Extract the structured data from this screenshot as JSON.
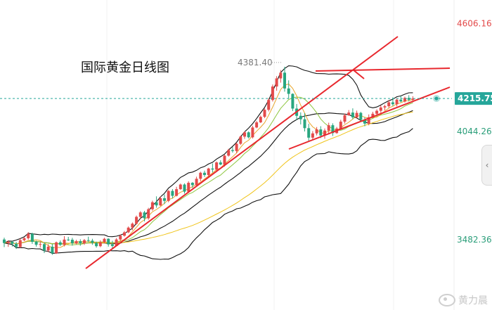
{
  "chart_data": {
    "type": "candlestick",
    "title": "国际黄金日线图",
    "price_axis_labels": [
      "4606.16",
      "4044.26",
      "3482.36"
    ],
    "ylim": [
      3350,
      4640
    ],
    "current_price": {
      "label": "4215.75",
      "value": 4215.75
    },
    "high_annotation": {
      "label": "4381.40",
      "value": 4381.4
    },
    "candles": [
      [
        3483.0,
        3492.4,
        3443.5,
        3464.6
      ],
      [
        3464.6,
        3478.8,
        3444.6,
        3471.4
      ],
      [
        3471.4,
        3474.6,
        3446.4,
        3460.9
      ],
      [
        3460.9,
        3471.2,
        3433.6,
        3444.3
      ],
      [
        3444.3,
        3487.9,
        3438.7,
        3479.5
      ],
      [
        3479.5,
        3495.8,
        3474.5,
        3489.5
      ],
      [
        3489.5,
        3521.4,
        3482.2,
        3512.4
      ],
      [
        3512.4,
        3518.7,
        3460.3,
        3471.0
      ],
      [
        3471.0,
        3476.9,
        3446.0,
        3455.7
      ],
      [
        3455.7,
        3474.0,
        3441.0,
        3459.0
      ],
      [
        3459.0,
        3468.5,
        3412.6,
        3426.0
      ],
      [
        3426.0,
        3458.8,
        3417.0,
        3445.7
      ],
      [
        3445.7,
        3459.3,
        3403.4,
        3411.6
      ],
      [
        3411.6,
        3472.5,
        3407.7,
        3468.4
      ],
      [
        3468.4,
        3477.9,
        3449.3,
        3455.3
      ],
      [
        3455.3,
        3500.2,
        3447.3,
        3482.6
      ],
      [
        3482.6,
        3496.5,
        3474.9,
        3481.8
      ],
      [
        3481.8,
        3491.8,
        3451.1,
        3463.1
      ],
      [
        3463.1,
        3481.5,
        3457.4,
        3474.2
      ],
      [
        3474.2,
        3484.2,
        3450.6,
        3462.9
      ],
      [
        3462.9,
        3485.7,
        3455.1,
        3479.4
      ],
      [
        3479.4,
        3497.6,
        3469.4,
        3476.9
      ],
      [
        3476.9,
        3486.7,
        3455.3,
        3465.2
      ],
      [
        3465.2,
        3472.0,
        3440.8,
        3448.3
      ],
      [
        3448.3,
        3478.6,
        3442.9,
        3468.7
      ],
      [
        3468.7,
        3491.9,
        3463.3,
        3486.6
      ],
      [
        3486.6,
        3489.6,
        3446.0,
        3457.7
      ],
      [
        3457.7,
        3476.6,
        3436.3,
        3449.4
      ],
      [
        3449.4,
        3490.2,
        3448.0,
        3483.1
      ],
      [
        3483.1,
        3509.2,
        3474.8,
        3502.8
      ],
      [
        3502.8,
        3527.1,
        3497.9,
        3520.3
      ],
      [
        3520.3,
        3550.8,
        3515.9,
        3544.8
      ],
      [
        3544.8,
        3571.4,
        3531.1,
        3565.3
      ],
      [
        3565.3,
        3607.4,
        3560.4,
        3600.6
      ],
      [
        3600.6,
        3630.3,
        3591.7,
        3623.8
      ],
      [
        3623.8,
        3631.7,
        3577.2,
        3593.3
      ],
      [
        3593.3,
        3647.6,
        3585.7,
        3640.4
      ],
      [
        3640.4,
        3684.8,
        3632.7,
        3676.6
      ],
      [
        3676.6,
        3707.3,
        3648.3,
        3660.2
      ],
      [
        3660.2,
        3706.5,
        3656.6,
        3697.5
      ],
      [
        3697.5,
        3717.2,
        3666.8,
        3683.9
      ],
      [
        3683.9,
        3740.1,
        3676.8,
        3735.4
      ],
      [
        3735.4,
        3745.0,
        3696.8,
        3710.0
      ],
      [
        3710.0,
        3756.9,
        3706.9,
        3744.5
      ],
      [
        3744.5,
        3773.6,
        3741.3,
        3768.7
      ],
      [
        3768.7,
        3774.7,
        3721.7,
        3731.8
      ],
      [
        3731.8,
        3785.8,
        3725.5,
        3777.7
      ],
      [
        3777.7,
        3781.3,
        3751.4,
        3765.6
      ],
      [
        3765.6,
        3809.5,
        3760.6,
        3798.6
      ],
      [
        3798.6,
        3835.2,
        3785.5,
        3829.9
      ],
      [
        3829.9,
        3840.8,
        3807.8,
        3818.2
      ],
      [
        3818.2,
        3855.6,
        3808.6,
        3852.0
      ],
      [
        3852.0,
        3878.2,
        3831.4,
        3846.5
      ],
      [
        3846.5,
        3888.7,
        3837.6,
        3883.6
      ],
      [
        3883.6,
        3894.5,
        3868.9,
        3872.6
      ],
      [
        3872.6,
        3923.6,
        3862.2,
        3918.8
      ],
      [
        3918.8,
        3954.6,
        3913.9,
        3947.7
      ],
      [
        3947.7,
        3963.6,
        3934.5,
        3942.9
      ],
      [
        3942.9,
        3986.3,
        3931.8,
        3980.5
      ],
      [
        3980.5,
        4023.2,
        3974.5,
        4017.7
      ],
      [
        4017.7,
        4045.2,
        4006.0,
        4040.0
      ],
      [
        4040.0,
        4045.0,
        4008.5,
        4014.3
      ],
      [
        4014.3,
        4074.6,
        4008.0,
        4065.3
      ],
      [
        4065.3,
        4099.8,
        4061.3,
        4091.9
      ],
      [
        4091.9,
        4127.6,
        4088.5,
        4120.4
      ],
      [
        4120.4,
        4163.9,
        4114.3,
        4157.2
      ],
      [
        4157.2,
        4217.6,
        4148.9,
        4208.3
      ],
      [
        4208.3,
        4288.6,
        4200.1,
        4278.1
      ],
      [
        4278.1,
        4332.0,
        4256.2,
        4320.3
      ],
      [
        4320.3,
        4363.7,
        4298.3,
        4350.0
      ],
      [
        4350.0,
        4381.4,
        4251.3,
        4268.1
      ],
      [
        4268.1,
        4310.2,
        4213.8,
        4240.0
      ],
      [
        4240.0,
        4242.8,
        4150.8,
        4163.5
      ],
      [
        4163.5,
        4187.3,
        4103.7,
        4125.8
      ],
      [
        4125.8,
        4143.9,
        4080.9,
        4107.9
      ],
      [
        4107.9,
        4140.2,
        4044.8,
        4061.7
      ],
      [
        4061.7,
        4084.4,
        3993.1,
        4012.3
      ],
      [
        4012.3,
        4046.6,
        3998.6,
        4034.5
      ],
      [
        4034.5,
        4067.5,
        4024.0,
        4055.2
      ],
      [
        4055.2,
        4071.8,
        4010.2,
        4023.7
      ],
      [
        4023.7,
        4060.2,
        4006.7,
        4049.3
      ],
      [
        4049.3,
        4090.3,
        4028.8,
        4076.9
      ],
      [
        4076.9,
        4086.9,
        4021.2,
        4036.2
      ],
      [
        4036.2,
        4068.0,
        4032.5,
        4059.9
      ],
      [
        4059.9,
        4105.4,
        4055.0,
        4095.5
      ],
      [
        4095.5,
        4137.6,
        4085.9,
        4128.8
      ],
      [
        4128.8,
        4155.7,
        4125.7,
        4142.7
      ],
      [
        4142.7,
        4164.7,
        4108.6,
        4117.7
      ],
      [
        4117.7,
        4152.9,
        4113.2,
        4141.0
      ],
      [
        4141.0,
        4146.7,
        4093.6,
        4104.7
      ],
      [
        4104.7,
        4117.7,
        4071.3,
        4085.5
      ],
      [
        4085.5,
        4133.0,
        4076.5,
        4118.2
      ],
      [
        4118.2,
        4146.7,
        4114.1,
        4136.6
      ],
      [
        4136.6,
        4159.3,
        4126.9,
        4152.0
      ],
      [
        4152.0,
        4180.0,
        4140.4,
        4169.3
      ],
      [
        4169.3,
        4183.7,
        4154.4,
        4175.7
      ],
      [
        4175.7,
        4207.5,
        4167.6,
        4196.0
      ],
      [
        4196.0,
        4221.5,
        4177.0,
        4186.1
      ],
      [
        4186.1,
        4218.3,
        4175.0,
        4210.0
      ],
      [
        4210.0,
        4229.2,
        4196.2,
        4200.4
      ],
      [
        4200.4,
        4225.3,
        4194.7,
        4219.0
      ],
      [
        4219.0,
        4233.1,
        4200.9,
        4209.3
      ],
      [
        4209.3,
        4227.5,
        4196.1,
        4215.75
      ]
    ]
  },
  "watermark": {
    "text": "黄力晨"
  },
  "scroll": {
    "icon": "‹"
  }
}
